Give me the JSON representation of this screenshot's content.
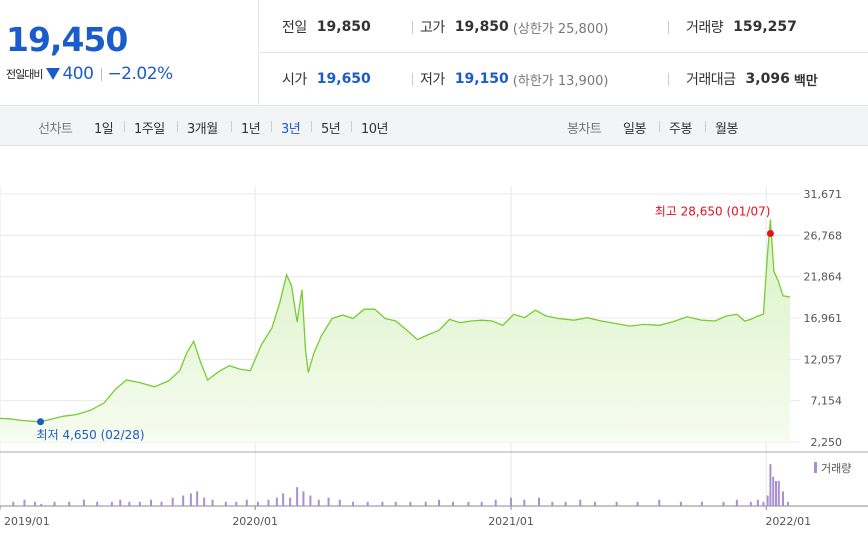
{
  "quote": {
    "price": "19,450",
    "change_label": "전일대비",
    "change_amount": "400",
    "change_percent": "−2.02%",
    "row1": [
      {
        "label": "전일",
        "value": "19,850",
        "color": "normal",
        "sub": ""
      },
      {
        "label": "고가",
        "value": "19,850",
        "color": "normal",
        "sub": "(상한가 25,800)"
      },
      {
        "label": "거래량",
        "value": "159,257",
        "color": "normal",
        "sub": ""
      }
    ],
    "row2": [
      {
        "label": "시가",
        "value": "19,650",
        "color": "blue",
        "sub": ""
      },
      {
        "label": "저가",
        "value": "19,150",
        "color": "blue",
        "sub": "(하한가 13,900)"
      },
      {
        "label": "거래대금",
        "value": "3,096",
        "color": "normal",
        "sub": "백만"
      }
    ]
  },
  "period_bar": {
    "line_label": "선차트",
    "line_periods": [
      "1일",
      "1주일",
      "3개월",
      "1년",
      "3년",
      "5년",
      "10년"
    ],
    "active_period": "3년",
    "candle_label": "봉차트",
    "candle_periods": [
      "일봉",
      "주봉",
      "월봉"
    ]
  },
  "chart_data": {
    "type": "area",
    "title": "",
    "xlabel": "",
    "ylabel": "",
    "y_ticks": [
      "31,671",
      "26,768",
      "21,864",
      "16,961",
      "12,057",
      "7,154",
      "2,250"
    ],
    "ylim": [
      2250,
      31671
    ],
    "x_ticks": [
      "2019/01",
      "2020/01",
      "2021/01",
      "2022/01"
    ],
    "x_range": [
      "2019/01/01",
      "2022/02/04"
    ],
    "accent_color": "#77cc33",
    "fill_color": "#d9f2c4",
    "max_annotation": "최고 28,650 (01/07)",
    "min_annotation": "최저 4,650 (02/28)",
    "max_point": {
      "date": "2022/01/07",
      "value": 28650
    },
    "min_point": {
      "date": "2019/02/28",
      "value": 4650
    },
    "price_series": {
      "dates": [
        "2019/01/01",
        "2019/01/15",
        "2019/02/01",
        "2019/02/28",
        "2019/03/15",
        "2019/04/01",
        "2019/04/20",
        "2019/05/10",
        "2019/05/30",
        "2019/06/15",
        "2019/07/01",
        "2019/07/20",
        "2019/08/10",
        "2019/08/30",
        "2019/09/15",
        "2019/09/25",
        "2019/10/05",
        "2019/10/15",
        "2019/10/25",
        "2019/11/10",
        "2019/11/25",
        "2019/12/10",
        "2019/12/25",
        "2020/01/10",
        "2020/01/25",
        "2020/02/05",
        "2020/02/15",
        "2020/02/22",
        "2020/03/01",
        "2020/03/08",
        "2020/03/13",
        "2020/03/17",
        "2020/03/25",
        "2020/04/05",
        "2020/04/20",
        "2020/05/05",
        "2020/05/20",
        "2020/06/05",
        "2020/06/20",
        "2020/07/05",
        "2020/07/20",
        "2020/08/05",
        "2020/08/20",
        "2020/09/05",
        "2020/09/20",
        "2020/10/05",
        "2020/10/20",
        "2020/11/05",
        "2020/11/20",
        "2020/12/05",
        "2020/12/20",
        "2021/01/05",
        "2021/01/20",
        "2021/02/05",
        "2021/02/20",
        "2021/03/10",
        "2021/04/01",
        "2021/04/20",
        "2021/05/10",
        "2021/06/01",
        "2021/06/20",
        "2021/07/10",
        "2021/08/01",
        "2021/08/20",
        "2021/09/10",
        "2021/10/01",
        "2021/10/20",
        "2021/11/05",
        "2021/11/20",
        "2021/12/01",
        "2021/12/10",
        "2021/12/20",
        "2021/12/28",
        "2022/01/03",
        "2022/01/07",
        "2022/01/12",
        "2022/01/18",
        "2022/01/25",
        "2022/02/04"
      ],
      "values": [
        5050,
        5000,
        4800,
        4650,
        4950,
        5300,
        5500,
        6000,
        6900,
        8500,
        9600,
        9300,
        8800,
        9500,
        10700,
        12800,
        14200,
        11700,
        9600,
        10600,
        11300,
        10900,
        10700,
        13800,
        15800,
        18700,
        22100,
        20800,
        16500,
        20300,
        13200,
        10500,
        12800,
        14900,
        16900,
        17300,
        16900,
        18000,
        18000,
        16900,
        16600,
        15500,
        14400,
        15000,
        15500,
        16800,
        16400,
        16600,
        16700,
        16600,
        16100,
        17400,
        17000,
        17900,
        17200,
        16900,
        16700,
        17000,
        16600,
        16300,
        16000,
        16200,
        16100,
        16500,
        17100,
        16700,
        16600,
        17200,
        17400,
        16600,
        16800,
        17200,
        17400,
        24700,
        28650,
        22500,
        21400,
        19600,
        19450
      ]
    },
    "volume_series": {
      "label": "거래량",
      "color": "#a88fd4",
      "dates": [
        "2019/01/20",
        "2019/02/05",
        "2019/02/20",
        "2019/03/01",
        "2019/03/20",
        "2019/04/10",
        "2019/05/01",
        "2019/05/20",
        "2019/06/10",
        "2019/06/22",
        "2019/07/05",
        "2019/07/20",
        "2019/08/05",
        "2019/08/20",
        "2019/09/05",
        "2019/09/20",
        "2019/10/01",
        "2019/10/10",
        "2019/10/20",
        "2019/11/01",
        "2019/11/20",
        "2019/12/05",
        "2019/12/20",
        "2020/01/05",
        "2020/01/20",
        "2020/02/01",
        "2020/02/10",
        "2020/02/20",
        "2020/03/01",
        "2020/03/10",
        "2020/03/20",
        "2020/04/01",
        "2020/04/15",
        "2020/05/01",
        "2020/05/20",
        "2020/06/10",
        "2020/07/01",
        "2020/07/20",
        "2020/08/10",
        "2020/09/01",
        "2020/09/20",
        "2020/10/10",
        "2020/11/01",
        "2020/11/20",
        "2020/12/10",
        "2021/01/01",
        "2021/01/20",
        "2021/02/10",
        "2021/03/01",
        "2021/03/20",
        "2021/04/10",
        "2021/05/01",
        "2021/06/01",
        "2021/07/01",
        "2021/08/01",
        "2021/09/01",
        "2021/10/01",
        "2021/11/01",
        "2021/11/20",
        "2021/12/10",
        "2021/12/20",
        "2021/12/28",
        "2022/01/03",
        "2022/01/07",
        "2022/01/11",
        "2022/01/15",
        "2022/01/19",
        "2022/01/25",
        "2022/02/01"
      ],
      "values": [
        2,
        3,
        2,
        1,
        2,
        2,
        3,
        2,
        2,
        3,
        2,
        2,
        3,
        2,
        4,
        5,
        6,
        7,
        4,
        3,
        2,
        2,
        3,
        2,
        3,
        4,
        6,
        4,
        9,
        7,
        5,
        3,
        4,
        3,
        2,
        2,
        2,
        2,
        2,
        2,
        3,
        2,
        2,
        2,
        3,
        4,
        3,
        4,
        2,
        2,
        3,
        2,
        2,
        2,
        3,
        2,
        2,
        2,
        3,
        2,
        3,
        2,
        5,
        20,
        14,
        12,
        12,
        7,
        2
      ],
      "max": 22
    }
  }
}
